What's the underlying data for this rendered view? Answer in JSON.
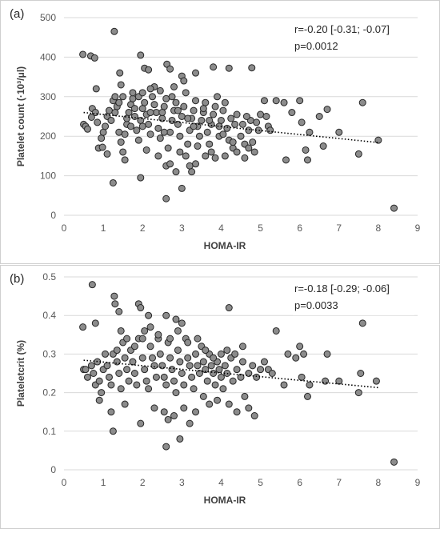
{
  "chart_data": [
    {
      "type": "scatter",
      "panel_label": "(a)",
      "xlabel": "HOMA-IR",
      "ylabel": "Platelet count (·10³/μl)",
      "xlim": [
        0,
        9
      ],
      "ylim": [
        0,
        500
      ],
      "xticks": [
        "0",
        "1",
        "2",
        "3",
        "4",
        "5",
        "6",
        "7",
        "8",
        "9"
      ],
      "yticks": [
        "0",
        "100",
        "200",
        "300",
        "400",
        "500"
      ],
      "ytick_values": [
        0,
        100,
        200,
        300,
        400,
        500
      ],
      "grid": "horizontal",
      "annotation": [
        "r=-0.20 [-0.31; -0.07]",
        "p=0.0012"
      ],
      "trendline": {
        "style": "dotted",
        "x": [
          0.5,
          8.0
        ],
        "y": [
          260,
          184
        ]
      },
      "marker_color": "#8c8c8c",
      "points": [
        [
          0.48,
          407
        ],
        [
          0.68,
          403
        ],
        [
          0.78,
          398
        ],
        [
          1.28,
          465
        ],
        [
          1.42,
          360
        ],
        [
          1.45,
          330
        ],
        [
          1.95,
          405
        ],
        [
          2.05,
          372
        ],
        [
          2.15,
          368
        ],
        [
          2.62,
          382
        ],
        [
          2.7,
          370
        ],
        [
          3.0,
          352
        ],
        [
          3.35,
          360
        ],
        [
          3.8,
          375
        ],
        [
          4.2,
          372
        ],
        [
          4.78,
          373
        ],
        [
          0.82,
          320
        ],
        [
          0.5,
          230
        ],
        [
          0.55,
          225
        ],
        [
          0.6,
          218
        ],
        [
          0.7,
          248
        ],
        [
          0.72,
          270
        ],
        [
          0.8,
          260
        ],
        [
          0.85,
          235
        ],
        [
          0.88,
          170
        ],
        [
          0.95,
          195
        ],
        [
          1.0,
          210
        ],
        [
          1.05,
          225
        ],
        [
          1.1,
          250
        ],
        [
          1.15,
          265
        ],
        [
          1.2,
          240
        ],
        [
          1.25,
          290
        ],
        [
          1.3,
          300
        ],
        [
          1.35,
          275
        ],
        [
          1.4,
          210
        ],
        [
          1.45,
          185
        ],
        [
          1.5,
          160
        ],
        [
          1.55,
          205
        ],
        [
          1.6,
          230
        ],
        [
          1.65,
          260
        ],
        [
          1.7,
          280
        ],
        [
          1.75,
          295
        ],
        [
          1.8,
          250
        ],
        [
          1.85,
          215
        ],
        [
          1.9,
          190
        ],
        [
          1.95,
          240
        ],
        [
          2.0,
          270
        ],
        [
          2.05,
          285
        ],
        [
          2.1,
          255
        ],
        [
          2.15,
          230
        ],
        [
          2.2,
          205
        ],
        [
          2.25,
          300
        ],
        [
          2.3,
          325
        ],
        [
          2.35,
          260
        ],
        [
          2.4,
          220
        ],
        [
          2.45,
          195
        ],
        [
          2.5,
          245
        ],
        [
          2.55,
          275
        ],
        [
          2.6,
          295
        ],
        [
          2.65,
          170
        ],
        [
          2.7,
          210
        ],
        [
          2.75,
          240
        ],
        [
          2.8,
          265
        ],
        [
          2.85,
          285
        ],
        [
          2.9,
          230
        ],
        [
          2.95,
          200
        ],
        [
          3.0,
          250
        ],
        [
          3.05,
          275
        ],
        [
          3.1,
          310
        ],
        [
          3.15,
          180
        ],
        [
          3.2,
          215
        ],
        [
          3.25,
          245
        ],
        [
          3.3,
          265
        ],
        [
          3.35,
          290
        ],
        [
          3.4,
          225
        ],
        [
          3.45,
          200
        ],
        [
          3.5,
          240
        ],
        [
          3.55,
          260
        ],
        [
          3.6,
          285
        ],
        [
          3.65,
          210
        ],
        [
          3.7,
          180
        ],
        [
          3.75,
          230
        ],
        [
          3.8,
          255
        ],
        [
          3.85,
          275
        ],
        [
          3.9,
          300
        ],
        [
          3.95,
          200
        ],
        [
          4.0,
          240
        ],
        [
          4.05,
          265
        ],
        [
          4.1,
          285
        ],
        [
          4.15,
          220
        ],
        [
          4.2,
          190
        ],
        [
          4.25,
          245
        ],
        [
          4.3,
          170
        ],
        [
          4.4,
          255
        ],
        [
          4.5,
          200
        ],
        [
          4.55,
          230
        ],
        [
          4.6,
          180
        ],
        [
          4.7,
          215
        ],
        [
          4.75,
          240
        ],
        [
          4.8,
          185
        ],
        [
          4.9,
          235
        ],
        [
          4.95,
          215
        ],
        [
          5.0,
          255
        ],
        [
          5.1,
          290
        ],
        [
          5.15,
          250
        ],
        [
          5.2,
          225
        ],
        [
          5.25,
          215
        ],
        [
          5.4,
          290
        ],
        [
          5.6,
          285
        ],
        [
          5.65,
          140
        ],
        [
          5.8,
          260
        ],
        [
          6.0,
          290
        ],
        [
          6.05,
          235
        ],
        [
          6.15,
          165
        ],
        [
          6.2,
          140
        ],
        [
          6.25,
          210
        ],
        [
          6.5,
          250
        ],
        [
          6.6,
          175
        ],
        [
          6.7,
          268
        ],
        [
          7.0,
          210
        ],
        [
          7.5,
          155
        ],
        [
          7.6,
          285
        ],
        [
          8.0,
          190
        ],
        [
          8.4,
          18
        ],
        [
          0.98,
          172
        ],
        [
          1.1,
          155
        ],
        [
          1.25,
          82
        ],
        [
          1.55,
          140
        ],
        [
          1.95,
          95
        ],
        [
          2.1,
          165
        ],
        [
          2.4,
          150
        ],
        [
          2.6,
          125
        ],
        [
          2.6,
          42
        ],
        [
          2.7,
          130
        ],
        [
          2.85,
          110
        ],
        [
          2.95,
          160
        ],
        [
          3.0,
          68
        ],
        [
          3.1,
          150
        ],
        [
          3.2,
          125
        ],
        [
          3.25,
          110
        ],
        [
          3.35,
          130
        ],
        [
          3.4,
          175
        ],
        [
          3.6,
          150
        ],
        [
          3.75,
          160
        ],
        [
          3.85,
          145
        ],
        [
          4.1,
          150
        ],
        [
          4.3,
          185
        ],
        [
          4.4,
          160
        ],
        [
          4.6,
          145
        ],
        [
          4.7,
          170
        ],
        [
          4.85,
          160
        ],
        [
          1.3,
          260
        ],
        [
          1.4,
          285
        ],
        [
          1.6,
          245
        ],
        [
          1.7,
          225
        ],
        [
          1.8,
          270
        ],
        [
          1.9,
          300
        ],
        [
          2.0,
          225
        ],
        [
          2.2,
          260
        ],
        [
          2.3,
          280
        ],
        [
          2.5,
          260
        ],
        [
          2.55,
          210
        ],
        [
          2.75,
          300
        ],
        [
          2.9,
          265
        ],
        [
          3.15,
          245
        ],
        [
          3.3,
          225
        ],
        [
          3.55,
          270
        ],
        [
          3.7,
          240
        ],
        [
          3.95,
          225
        ],
        [
          4.05,
          205
        ],
        [
          4.35,
          230
        ],
        [
          4.65,
          250
        ],
        [
          2.45,
          315
        ],
        [
          2.8,
          325
        ],
        [
          3.05,
          340
        ],
        [
          2.2,
          320
        ],
        [
          1.75,
          310
        ],
        [
          1.5,
          300
        ],
        [
          2.0,
          310
        ]
      ]
    },
    {
      "type": "scatter",
      "panel_label": "(b)",
      "xlabel": "HOMA-IR",
      "ylabel": "Plateletcrit (%)",
      "xlim": [
        0,
        9
      ],
      "ylim": [
        0,
        0.5
      ],
      "xticks": [
        "0",
        "1",
        "2",
        "3",
        "4",
        "5",
        "6",
        "7",
        "8",
        "9"
      ],
      "yticks": [
        "0",
        "0.1",
        "0.2",
        "0.3",
        "0.4",
        "0.5"
      ],
      "ytick_values": [
        0,
        0.1,
        0.2,
        0.3,
        0.4,
        0.5
      ],
      "grid": "horizontal",
      "annotation": [
        "r=-0.18 [-0.29; -0.06]",
        "p=0.0033"
      ],
      "trendline": {
        "style": "dotted",
        "x": [
          0.5,
          8.0
        ],
        "y": [
          0.284,
          0.213
        ]
      },
      "marker_color": "#8c8c8c",
      "points": [
        [
          0.72,
          0.48
        ],
        [
          1.28,
          0.45
        ],
        [
          1.3,
          0.43
        ],
        [
          1.4,
          0.41
        ],
        [
          1.9,
          0.43
        ],
        [
          1.95,
          0.42
        ],
        [
          2.15,
          0.4
        ],
        [
          2.6,
          0.4
        ],
        [
          2.85,
          0.39
        ],
        [
          3.0,
          0.38
        ],
        [
          4.2,
          0.42
        ],
        [
          7.6,
          0.38
        ],
        [
          0.48,
          0.37
        ],
        [
          0.8,
          0.38
        ],
        [
          1.45,
          0.36
        ],
        [
          2.05,
          0.36
        ],
        [
          0.5,
          0.26
        ],
        [
          0.55,
          0.26
        ],
        [
          0.6,
          0.24
        ],
        [
          0.7,
          0.27
        ],
        [
          0.75,
          0.25
        ],
        [
          0.8,
          0.22
        ],
        [
          0.85,
          0.28
        ],
        [
          0.9,
          0.23
        ],
        [
          0.95,
          0.2
        ],
        [
          1.0,
          0.26
        ],
        [
          1.05,
          0.3
        ],
        [
          1.1,
          0.27
        ],
        [
          1.15,
          0.24
        ],
        [
          1.2,
          0.22
        ],
        [
          1.25,
          0.3
        ],
        [
          1.35,
          0.28
        ],
        [
          1.4,
          0.25
        ],
        [
          1.45,
          0.21
        ],
        [
          1.5,
          0.33
        ],
        [
          1.55,
          0.29
        ],
        [
          1.6,
          0.26
        ],
        [
          1.65,
          0.23
        ],
        [
          1.7,
          0.31
        ],
        [
          1.75,
          0.28
        ],
        [
          1.8,
          0.25
        ],
        [
          1.85,
          0.22
        ],
        [
          1.9,
          0.34
        ],
        [
          2.0,
          0.29
        ],
        [
          2.05,
          0.26
        ],
        [
          2.1,
          0.23
        ],
        [
          2.15,
          0.21
        ],
        [
          2.2,
          0.32
        ],
        [
          2.25,
          0.29
        ],
        [
          2.3,
          0.27
        ],
        [
          2.35,
          0.24
        ],
        [
          2.4,
          0.34
        ],
        [
          2.45,
          0.3
        ],
        [
          2.5,
          0.27
        ],
        [
          2.55,
          0.24
        ],
        [
          2.6,
          0.22
        ],
        [
          2.65,
          0.33
        ],
        [
          2.7,
          0.29
        ],
        [
          2.75,
          0.26
        ],
        [
          2.8,
          0.23
        ],
        [
          2.85,
          0.2
        ],
        [
          2.9,
          0.31
        ],
        [
          2.95,
          0.28
        ],
        [
          3.0,
          0.25
        ],
        [
          3.05,
          0.22
        ],
        [
          3.1,
          0.34
        ],
        [
          3.15,
          0.29
        ],
        [
          3.2,
          0.27
        ],
        [
          3.25,
          0.24
        ],
        [
          3.3,
          0.21
        ],
        [
          3.35,
          0.3
        ],
        [
          3.4,
          0.27
        ],
        [
          3.45,
          0.25
        ],
        [
          3.5,
          0.32
        ],
        [
          3.55,
          0.28
        ],
        [
          3.6,
          0.26
        ],
        [
          3.65,
          0.23
        ],
        [
          3.7,
          0.3
        ],
        [
          3.75,
          0.27
        ],
        [
          3.8,
          0.25
        ],
        [
          3.85,
          0.22
        ],
        [
          3.9,
          0.28
        ],
        [
          3.95,
          0.26
        ],
        [
          4.0,
          0.24
        ],
        [
          4.05,
          0.21
        ],
        [
          4.1,
          0.27
        ],
        [
          4.15,
          0.25
        ],
        [
          4.25,
          0.29
        ],
        [
          4.3,
          0.23
        ],
        [
          4.4,
          0.26
        ],
        [
          4.5,
          0.24
        ],
        [
          4.55,
          0.28
        ],
        [
          4.6,
          0.19
        ],
        [
          4.7,
          0.25
        ],
        [
          4.8,
          0.27
        ],
        [
          4.9,
          0.24
        ],
        [
          5.0,
          0.26
        ],
        [
          5.1,
          0.28
        ],
        [
          5.2,
          0.26
        ],
        [
          5.3,
          0.25
        ],
        [
          5.4,
          0.36
        ],
        [
          5.6,
          0.22
        ],
        [
          5.7,
          0.3
        ],
        [
          5.9,
          0.29
        ],
        [
          6.0,
          0.32
        ],
        [
          6.05,
          0.24
        ],
        [
          6.1,
          0.3
        ],
        [
          6.2,
          0.19
        ],
        [
          6.25,
          0.22
        ],
        [
          6.65,
          0.23
        ],
        [
          6.7,
          0.3
        ],
        [
          7.0,
          0.23
        ],
        [
          7.5,
          0.2
        ],
        [
          7.55,
          0.25
        ],
        [
          7.95,
          0.23
        ],
        [
          8.4,
          0.02
        ],
        [
          0.9,
          0.18
        ],
        [
          1.2,
          0.15
        ],
        [
          1.25,
          0.1
        ],
        [
          1.55,
          0.17
        ],
        [
          1.95,
          0.12
        ],
        [
          2.3,
          0.16
        ],
        [
          2.55,
          0.15
        ],
        [
          2.6,
          0.06
        ],
        [
          2.65,
          0.13
        ],
        [
          2.8,
          0.14
        ],
        [
          2.95,
          0.08
        ],
        [
          3.05,
          0.16
        ],
        [
          3.2,
          0.12
        ],
        [
          3.35,
          0.15
        ],
        [
          3.55,
          0.19
        ],
        [
          3.7,
          0.17
        ],
        [
          3.9,
          0.18
        ],
        [
          4.2,
          0.17
        ],
        [
          4.4,
          0.15
        ],
        [
          4.7,
          0.16
        ],
        [
          4.85,
          0.14
        ],
        [
          1.35,
          0.31
        ],
        [
          1.6,
          0.34
        ],
        [
          1.8,
          0.32
        ],
        [
          2.0,
          0.34
        ],
        [
          2.2,
          0.37
        ],
        [
          2.4,
          0.35
        ],
        [
          2.7,
          0.34
        ],
        [
          2.9,
          0.36
        ],
        [
          3.15,
          0.33
        ],
        [
          3.4,
          0.34
        ],
        [
          3.6,
          0.31
        ],
        [
          3.8,
          0.29
        ],
        [
          4.0,
          0.3
        ],
        [
          4.15,
          0.31
        ],
        [
          4.35,
          0.3
        ],
        [
          4.55,
          0.32
        ]
      ]
    }
  ]
}
